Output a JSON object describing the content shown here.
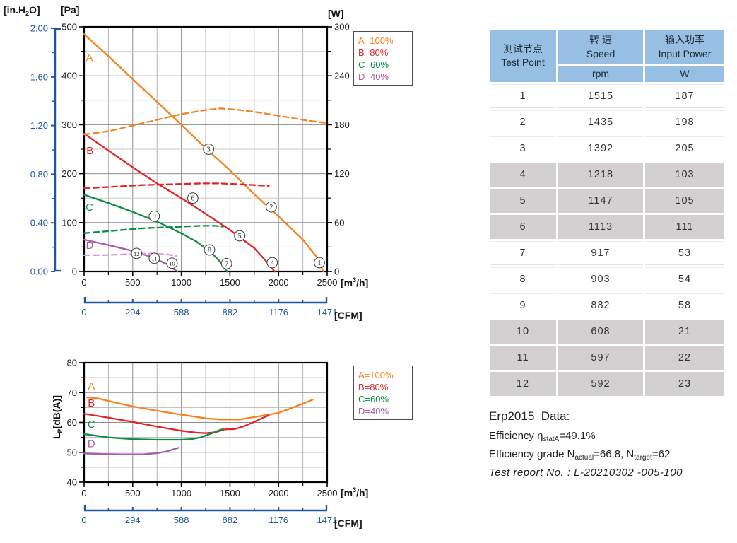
{
  "colors": {
    "blue": "#2055A4",
    "orange": "#F5821F",
    "red": "#E42528",
    "green": "#0E8C45",
    "purple": "#A85CA8",
    "purple_light": "#DC9CD6",
    "grid_major": "#8C8C8C",
    "grid_minor": "#C9C9C9",
    "axis_black": "#000000",
    "table_header_bg": "#96BFE3",
    "table_row_gray": "#D2D0D0"
  },
  "legend": {
    "entries": [
      {
        "label": "A=100%",
        "color_key": "orange"
      },
      {
        "label": "B=80%",
        "color_key": "red"
      },
      {
        "label": "C=60%",
        "color_key": "green"
      },
      {
        "label": "D=40%",
        "color_key": "purple"
      }
    ]
  },
  "chart_data": [
    {
      "type": "line",
      "x_axis": {
        "label_pre": "[m",
        "label_sup": "3",
        "label_post": "/h]",
        "min": 0,
        "max": 2500,
        "major_ticks": [
          0,
          500,
          1000,
          1500,
          2000,
          2500
        ],
        "minor_step": 250
      },
      "y_axis_pa": {
        "label": "[Pa]",
        "min": 0,
        "max": 500,
        "major_ticks": [
          500,
          400,
          300,
          200,
          100,
          0
        ],
        "minor_step": 50
      },
      "y_axis_w": {
        "label": "[W]",
        "min": 0,
        "max": 300,
        "major_ticks": [
          300,
          240,
          180,
          120,
          60,
          0
        ],
        "minor_step": 30
      },
      "y_axis_inh2o": {
        "label_pre": "[in.H",
        "label_sub": "2",
        "label_post": "O]",
        "min": 0,
        "max": 2.0,
        "major_tick_labels": [
          "2.00",
          "1.60",
          "1.20",
          "0.80",
          "0.40",
          "0.00"
        ]
      },
      "cfm_axis": {
        "label": "[CFM]",
        "tick_labels": [
          "0",
          "294",
          "588",
          "882",
          "1176",
          "1471"
        ]
      },
      "series": [
        {
          "name": "curve-A-static-pressure",
          "legend_label": "A=100%",
          "unit": "Pa",
          "color_key": "orange",
          "dashed": false,
          "points": [
            [
              0,
              485
            ],
            [
              250,
              440
            ],
            [
              500,
              393
            ],
            [
              750,
              347
            ],
            [
              1000,
              300
            ],
            [
              1250,
              252
            ],
            [
              1500,
              207
            ],
            [
              1750,
              158
            ],
            [
              2000,
              113
            ],
            [
              2250,
              65
            ],
            [
              2400,
              28
            ],
            [
              2460,
              0
            ]
          ]
        },
        {
          "name": "curve-B-static-pressure",
          "legend_label": "B=80%",
          "unit": "Pa",
          "color_key": "red",
          "dashed": false,
          "points": [
            [
              0,
              282
            ],
            [
              250,
              247
            ],
            [
              500,
              213
            ],
            [
              750,
              180
            ],
            [
              1000,
              150
            ],
            [
              1250,
              118
            ],
            [
              1500,
              85
            ],
            [
              1750,
              48
            ],
            [
              1900,
              15
            ],
            [
              1960,
              0
            ]
          ]
        },
        {
          "name": "curve-C-static-pressure",
          "legend_label": "C=60%",
          "unit": "Pa",
          "color_key": "green",
          "dashed": false,
          "points": [
            [
              0,
              157
            ],
            [
              250,
              140
            ],
            [
              500,
              122
            ],
            [
              750,
              102
            ],
            [
              1000,
              78
            ],
            [
              1150,
              62
            ],
            [
              1300,
              40
            ],
            [
              1400,
              20
            ],
            [
              1470,
              0
            ]
          ]
        },
        {
          "name": "curve-D-static-pressure",
          "legend_label": "D=40%",
          "unit": "Pa",
          "color_key": "purple",
          "dashed": false,
          "points": [
            [
              0,
              65
            ],
            [
              250,
              54
            ],
            [
              500,
              42
            ],
            [
              700,
              29
            ],
            [
              850,
              15
            ],
            [
              960,
              0
            ]
          ]
        },
        {
          "name": "curve-A-input-power",
          "legend_label": "A=100%",
          "unit": "W",
          "color_key": "orange",
          "dashed": true,
          "points": [
            [
              0,
              168
            ],
            [
              250,
              172
            ],
            [
              500,
              179
            ],
            [
              750,
              186
            ],
            [
              1000,
              193
            ],
            [
              1250,
              198
            ],
            [
              1400,
              200
            ],
            [
              1600,
              198
            ],
            [
              1800,
              195
            ],
            [
              2100,
              189
            ],
            [
              2300,
              185
            ],
            [
              2500,
              182
            ]
          ]
        },
        {
          "name": "curve-B-input-power",
          "legend_label": "B=80%",
          "unit": "W",
          "color_key": "red",
          "dashed": true,
          "points": [
            [
              0,
              102
            ],
            [
              300,
              104
            ],
            [
              600,
              106
            ],
            [
              900,
              107
            ],
            [
              1200,
              108
            ],
            [
              1400,
              108
            ],
            [
              1600,
              107
            ],
            [
              1900,
              105
            ]
          ]
        },
        {
          "name": "curve-C-input-power",
          "legend_label": "C=60%",
          "unit": "W",
          "color_key": "green",
          "dashed": true,
          "points": [
            [
              0,
              47
            ],
            [
              300,
              50
            ],
            [
              600,
              53
            ],
            [
              800,
              54
            ],
            [
              1000,
              55
            ],
            [
              1200,
              56
            ],
            [
              1350,
              56
            ],
            [
              1430,
              55
            ]
          ]
        },
        {
          "name": "curve-D-input-power",
          "legend_label": "D=40%",
          "unit": "W",
          "color_key": "purple_light",
          "dashed": true,
          "points": [
            [
              0,
              20
            ],
            [
              200,
              20
            ],
            [
              400,
              21
            ],
            [
              550,
              22
            ],
            [
              700,
              22
            ],
            [
              850,
              21
            ],
            [
              950,
              19
            ]
          ]
        }
      ],
      "curve_labels": [
        {
          "text": "A",
          "color_key": "orange",
          "x": 55,
          "y": 430
        },
        {
          "text": "B",
          "color_key": "red",
          "x": 60,
          "y": 240
        },
        {
          "text": "C",
          "color_key": "green",
          "x": 55,
          "y": 124
        },
        {
          "text": "D",
          "color_key": "purple",
          "x": 58,
          "y": 46
        }
      ],
      "point_markers": [
        {
          "n": "1",
          "x": 2420,
          "y": 18
        },
        {
          "n": "2",
          "x": 1925,
          "y": 132
        },
        {
          "n": "3",
          "x": 1280,
          "y": 250
        },
        {
          "n": "4",
          "x": 1935,
          "y": 18
        },
        {
          "n": "5",
          "x": 1600,
          "y": 73
        },
        {
          "n": "6",
          "x": 1118,
          "y": 150
        },
        {
          "n": "7",
          "x": 1465,
          "y": 16
        },
        {
          "n": "8",
          "x": 1290,
          "y": 44
        },
        {
          "n": "9",
          "x": 722,
          "y": 113
        },
        {
          "n": "10",
          "x": 905,
          "y": 17
        },
        {
          "n": "11",
          "x": 722,
          "y": 27
        },
        {
          "n": "12",
          "x": 540,
          "y": 37
        }
      ]
    },
    {
      "type": "line",
      "x_axis": {
        "label_pre": "[m",
        "label_sup": "3",
        "label_post": "/h]",
        "min": 0,
        "max": 2500,
        "major_ticks": [
          0,
          500,
          1000,
          1500,
          2000,
          2500
        ],
        "minor_step": 250
      },
      "y_axis_db": {
        "label_pre": "L",
        "label_sub": "P",
        "label_post": "[dB(A)]",
        "min": 40,
        "max": 80,
        "major_ticks": [
          80,
          70,
          60,
          50,
          40
        ],
        "minor_step": 5
      },
      "cfm_axis": {
        "label": "[CFM]",
        "tick_labels": [
          "0",
          "294",
          "588",
          "882",
          "1176",
          "1471"
        ]
      },
      "series": [
        {
          "name": "noise-A",
          "legend_label": "A=100%",
          "unit": "dB",
          "color_key": "orange",
          "dashed": false,
          "points": [
            [
              30,
              68.4
            ],
            [
              150,
              68.0
            ],
            [
              300,
              66.8
            ],
            [
              500,
              65.4
            ],
            [
              750,
              63.9
            ],
            [
              1000,
              62.6
            ],
            [
              1250,
              61.4
            ],
            [
              1400,
              61.0
            ],
            [
              1600,
              61.0
            ],
            [
              1750,
              61.8
            ],
            [
              1900,
              62.6
            ],
            [
              2000,
              63.2
            ],
            [
              2100,
              64.4
            ],
            [
              2250,
              66.3
            ],
            [
              2350,
              67.6
            ]
          ]
        },
        {
          "name": "noise-B",
          "legend_label": "B=80%",
          "unit": "dB",
          "color_key": "red",
          "dashed": false,
          "points": [
            [
              0,
              62.9
            ],
            [
              250,
              61.6
            ],
            [
              500,
              60.2
            ],
            [
              750,
              58.6
            ],
            [
              1000,
              57.2
            ],
            [
              1150,
              56.6
            ],
            [
              1250,
              56.4
            ],
            [
              1350,
              56.7
            ],
            [
              1450,
              57.7
            ],
            [
              1550,
              57.8
            ],
            [
              1650,
              58.8
            ],
            [
              1750,
              60.2
            ],
            [
              1850,
              61.7
            ],
            [
              1900,
              62.4
            ]
          ]
        },
        {
          "name": "noise-C",
          "legend_label": "C=60%",
          "unit": "dB",
          "color_key": "green",
          "dashed": false,
          "points": [
            [
              0,
              56.1
            ],
            [
              250,
              55.0
            ],
            [
              500,
              54.4
            ],
            [
              750,
              54.2
            ],
            [
              1000,
              54.2
            ],
            [
              1100,
              54.4
            ],
            [
              1200,
              55.0
            ],
            [
              1300,
              56.2
            ],
            [
              1400,
              57.5
            ],
            [
              1430,
              57.8
            ]
          ]
        },
        {
          "name": "noise-D",
          "legend_label": "D=40%",
          "unit": "dB",
          "color_key": "purple",
          "dashed": false,
          "points": [
            [
              0,
              49.6
            ],
            [
              200,
              49.4
            ],
            [
              400,
              49.3
            ],
            [
              600,
              49.3
            ],
            [
              750,
              49.7
            ],
            [
              850,
              50.3
            ],
            [
              970,
              51.5
            ]
          ]
        }
      ],
      "curve_labels": [
        {
          "text": "A",
          "color_key": "orange",
          "x": 75,
          "y": 71.0
        },
        {
          "text": "B",
          "color_key": "red",
          "x": 75,
          "y": 65.3
        },
        {
          "text": "C",
          "color_key": "green",
          "x": 75,
          "y": 58.2
        },
        {
          "text": "D",
          "color_key": "purple",
          "x": 75,
          "y": 51.7
        }
      ],
      "point_markers": []
    }
  ],
  "table": {
    "header": {
      "col1_zh": "测试节点",
      "col1_en": "Test Point",
      "col2_zh": "转 速",
      "col2_en": "Speed",
      "col2_unit": "rpm",
      "col3_zh": "输入功率",
      "col3_en": "Input Power",
      "col3_unit": "W"
    },
    "rows": [
      {
        "point": "1",
        "speed": "1515",
        "power": "187",
        "shade": false
      },
      {
        "point": "2",
        "speed": "1435",
        "power": "198",
        "shade": false
      },
      {
        "point": "3",
        "speed": "1392",
        "power": "205",
        "shade": false
      },
      {
        "point": "4",
        "speed": "1218",
        "power": "103",
        "shade": true
      },
      {
        "point": "5",
        "speed": "1147",
        "power": "105",
        "shade": true
      },
      {
        "point": "6",
        "speed": "1113",
        "power": "111",
        "shade": true
      },
      {
        "point": "7",
        "speed": "917",
        "power": "53",
        "shade": false
      },
      {
        "point": "8",
        "speed": "903",
        "power": "54",
        "shade": false
      },
      {
        "point": "9",
        "speed": "882",
        "power": "58",
        "shade": false
      },
      {
        "point": "10",
        "speed": "608",
        "power": "21",
        "shade": true
      },
      {
        "point": "11",
        "speed": "597",
        "power": "22",
        "shade": true
      },
      {
        "point": "12",
        "speed": "592",
        "power": "23",
        "shade": true
      }
    ]
  },
  "erp": {
    "title": "Erp2015  Data:",
    "eff_prefix": "Efficiency η",
    "eff_sub": "statA",
    "eff_suffix": "=49.1%",
    "grade_prefix": "Efficiency grade N",
    "grade_sub1": "actual",
    "grade_mid": "=66.8, N",
    "grade_sub2": "target",
    "grade_suffix": "=62",
    "report": "Test report No. : L-20210302 -005-100"
  }
}
